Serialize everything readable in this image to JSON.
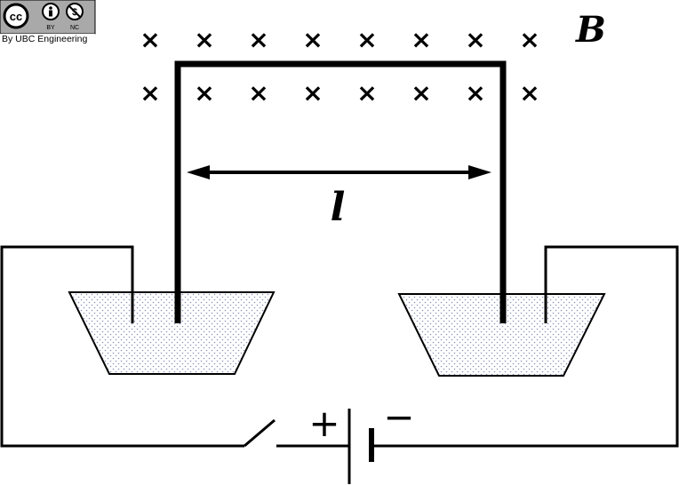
{
  "license_badge": {
    "cc_label": "cc",
    "by_label": "BY",
    "nc_label": "NC",
    "credit": "By UBC Engineering"
  },
  "diagram": {
    "field_label": "B",
    "length_label": "l",
    "battery_plus": "+",
    "battery_minus": "−",
    "field_symbol": "×",
    "field_rows": 2,
    "field_cols": 8
  },
  "colors": {
    "line": "#000000",
    "liquid_dots": "#8a98b8",
    "badge_bg": "#a9a9a9"
  }
}
